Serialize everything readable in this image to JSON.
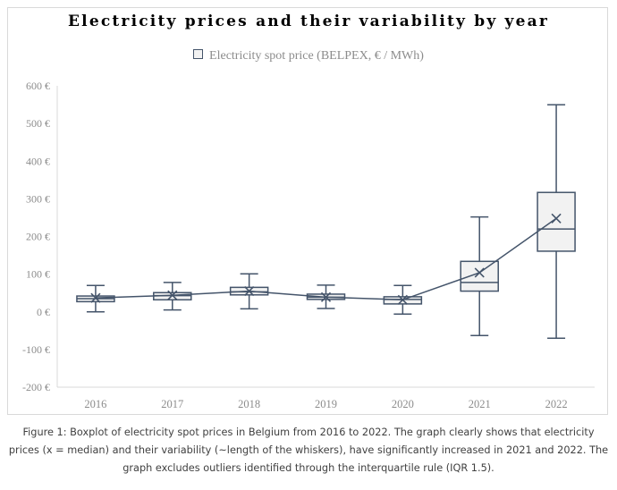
{
  "chart_data": {
    "type": "boxplot",
    "title": "Electricity prices and their variability by year",
    "legend_position": "top-center",
    "series": [
      {
        "name": "Electricity spot price (BELPEX, € / MWh)",
        "color": "#44546a",
        "fill": "#f2f2f2"
      }
    ],
    "categories": [
      "2016",
      "2017",
      "2018",
      "2019",
      "2020",
      "2021",
      "2022"
    ],
    "boxes": [
      {
        "category": "2016",
        "whisker_low": 0,
        "q1": 27,
        "median": 35,
        "q3": 42,
        "whisker_high": 70,
        "mean_marker": 37
      },
      {
        "category": "2017",
        "whisker_low": 5,
        "q1": 32,
        "median": 43,
        "q3": 51,
        "whisker_high": 78,
        "mean_marker": 44
      },
      {
        "category": "2018",
        "whisker_low": 8,
        "q1": 45,
        "median": 53,
        "q3": 65,
        "whisker_high": 101,
        "mean_marker": 55
      },
      {
        "category": "2019",
        "whisker_low": 9,
        "q1": 33,
        "median": 39,
        "q3": 47,
        "whisker_high": 71,
        "mean_marker": 39
      },
      {
        "category": "2020",
        "whisker_low": -6,
        "q1": 21,
        "median": 33,
        "q3": 40,
        "whisker_high": 70,
        "mean_marker": 32
      },
      {
        "category": "2021",
        "whisker_low": -63,
        "q1": 55,
        "median": 78,
        "q3": 134,
        "whisker_high": 252,
        "mean_marker": 104
      },
      {
        "category": "2022",
        "whisker_low": -70,
        "q1": 161,
        "median": 220,
        "q3": 317,
        "whisker_high": 550,
        "mean_marker": 248
      }
    ],
    "mean_line": true,
    "ylim": [
      -200,
      600
    ],
    "yticks": [
      -200,
      -100,
      0,
      100,
      200,
      300,
      400,
      500,
      600
    ],
    "ytick_labels": [
      "-200 €",
      "-100 €",
      "0 €",
      "100 €",
      "200 €",
      "300 €",
      "400 €",
      "500 €",
      "600 €"
    ],
    "grid": false
  },
  "caption": "Figure 1: Boxplot of electricity spot prices in Belgium from 2016 to 2022. The graph clearly shows that electricity prices (x = median) and their variability (~length of the whiskers), have significantly increased in 2021 and 2022. The graph excludes outliers identified through the interquartile rule (IQR 1.5)."
}
